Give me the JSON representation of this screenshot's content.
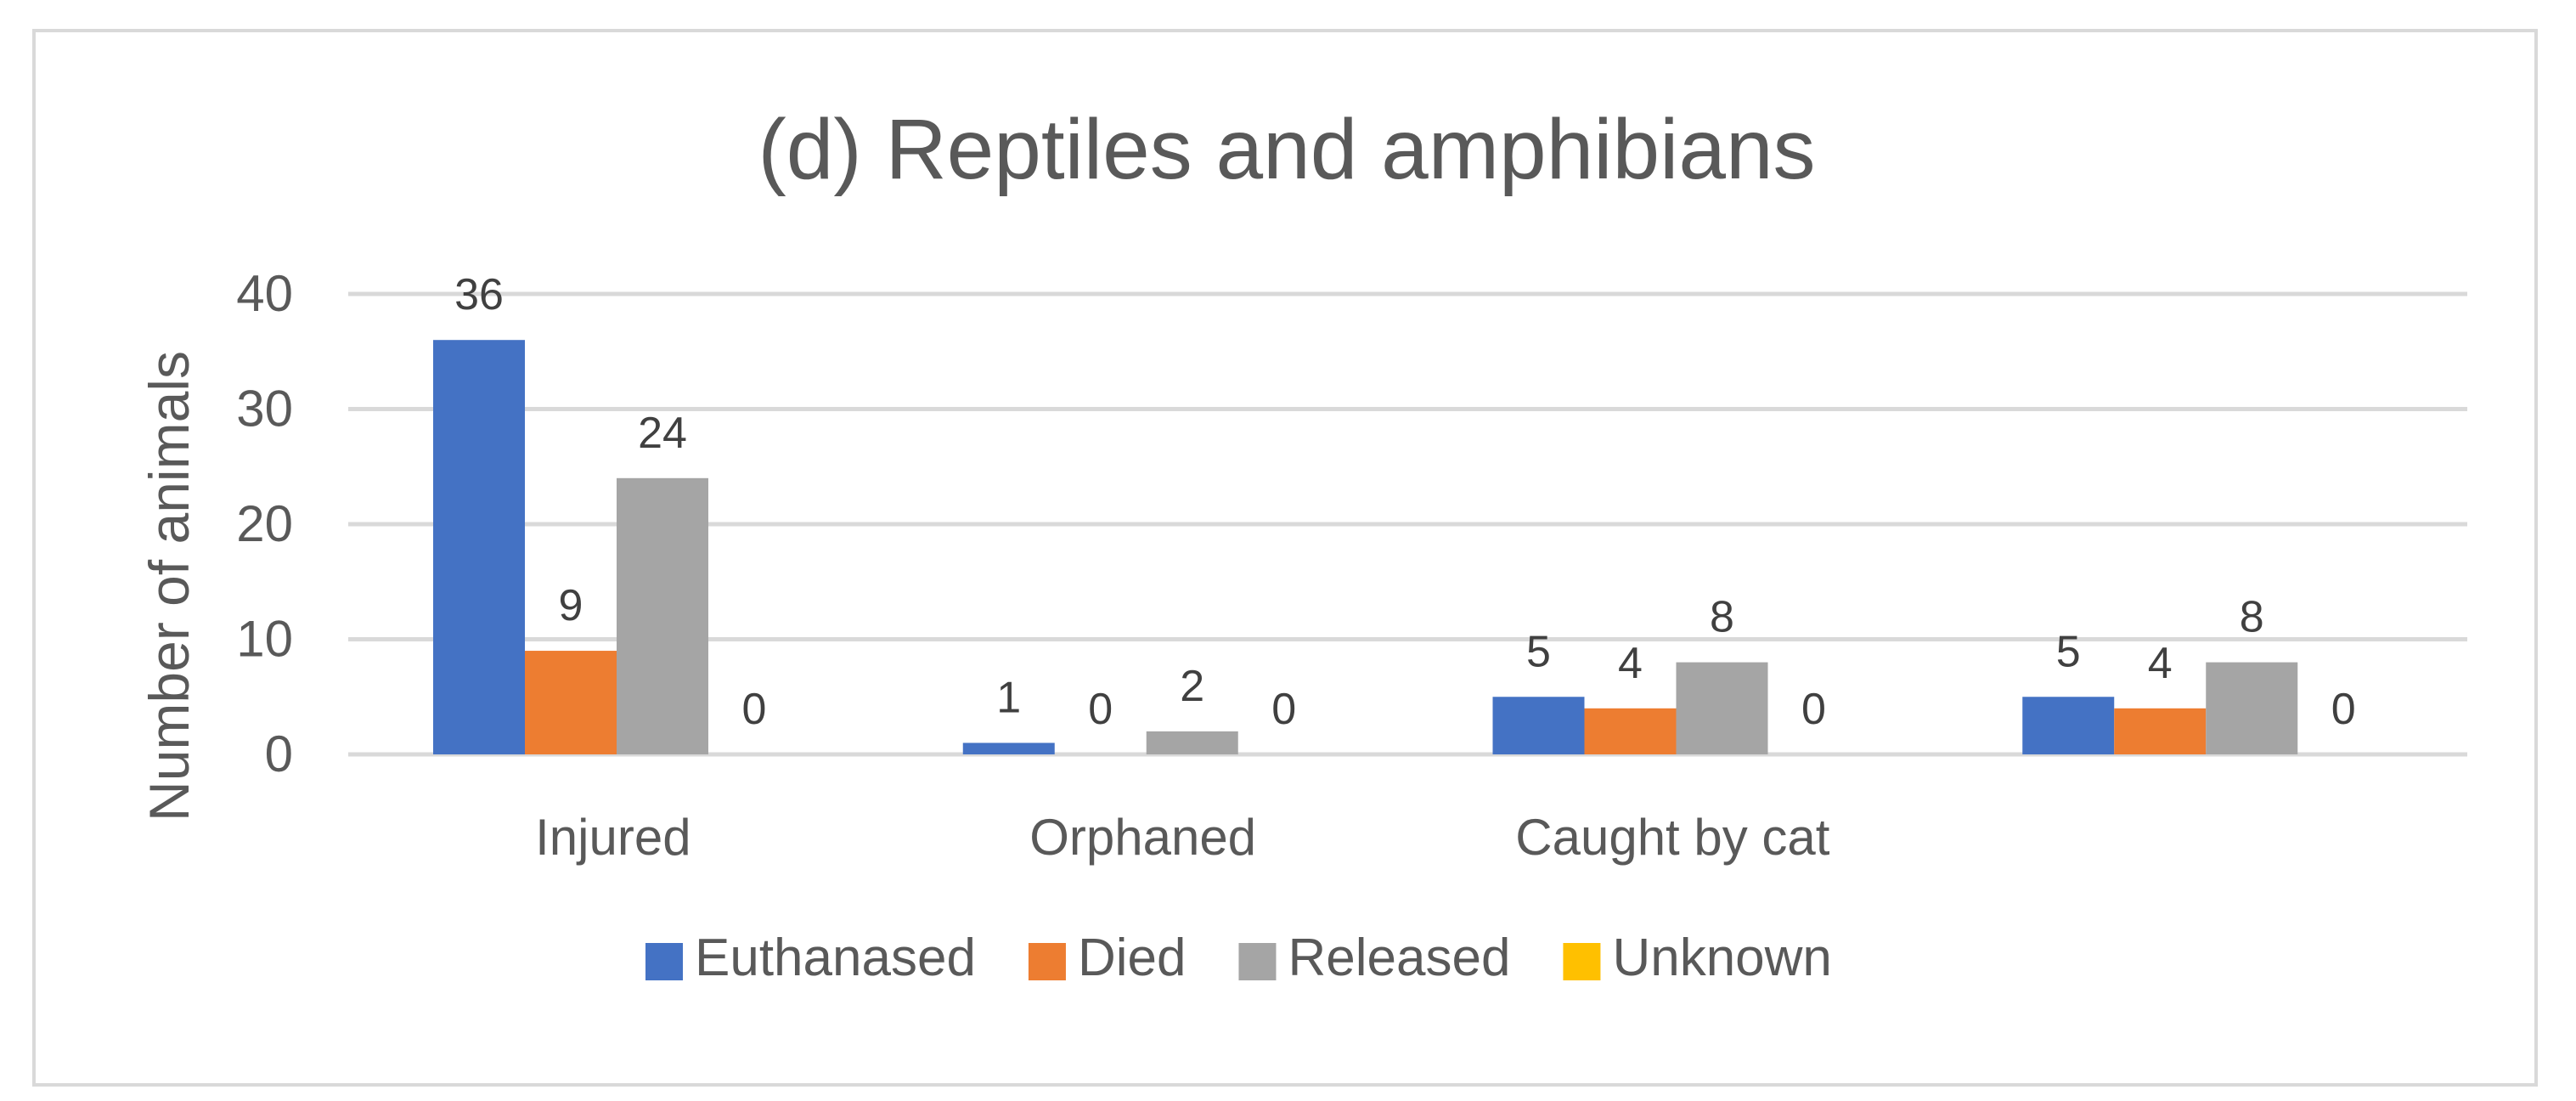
{
  "chart_data": {
    "type": "bar",
    "title": "(d) Reptiles and amphibians",
    "xlabel": "",
    "ylabel": "Number of animals",
    "ylim": [
      0,
      40
    ],
    "yticks": [
      0,
      10,
      20,
      30,
      40
    ],
    "grid": true,
    "legend_position": "bottom",
    "categories": [
      "Injured",
      "Orphaned",
      "Caught by cat",
      ""
    ],
    "series": [
      {
        "name": "Euthanased",
        "color": "#4472c4",
        "values": [
          36,
          1,
          5,
          5
        ]
      },
      {
        "name": "Died",
        "color": "#ed7d31",
        "values": [
          9,
          0,
          4,
          4
        ]
      },
      {
        "name": "Released",
        "color": "#a5a5a5",
        "values": [
          24,
          2,
          8,
          8
        ]
      },
      {
        "name": "Unknown",
        "color": "#ffc000",
        "values": [
          0,
          0,
          0,
          0
        ]
      }
    ]
  }
}
